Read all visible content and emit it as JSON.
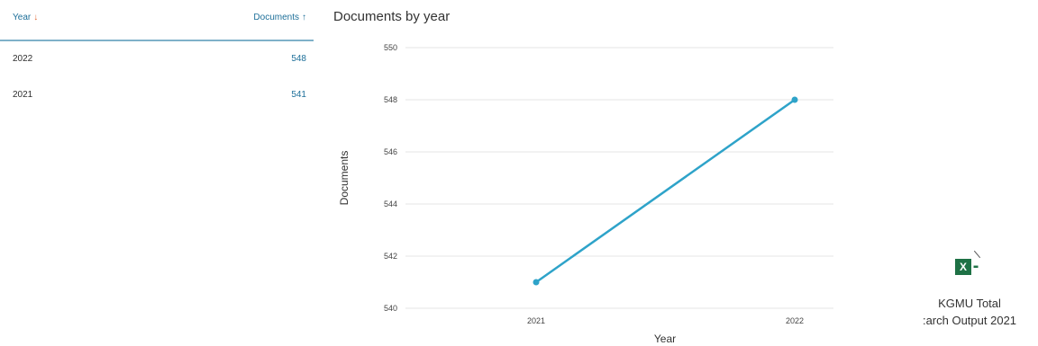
{
  "table": {
    "header": {
      "year_label": "Year",
      "year_sort_icon": "arrow-down-icon",
      "documents_label": "Documents",
      "documents_sort_icon": "arrow-up-icon"
    },
    "rows": [
      {
        "year": "2022",
        "documents": "548"
      },
      {
        "year": "2021",
        "documents": "541"
      }
    ]
  },
  "chart_data": {
    "type": "line",
    "title": "Documents by year",
    "xlabel": "Year",
    "ylabel": "Documents",
    "categories": [
      "2021",
      "2022"
    ],
    "values": [
      541,
      548
    ],
    "ylim": [
      540,
      550
    ],
    "yticks": [
      540,
      542,
      544,
      546,
      548,
      550
    ],
    "grid": true,
    "color": "#2ea3c9"
  },
  "file": {
    "icon": "excel-file-icon",
    "icon_letter": "X",
    "name": "KGMU Total\n:arch Output 2021"
  }
}
